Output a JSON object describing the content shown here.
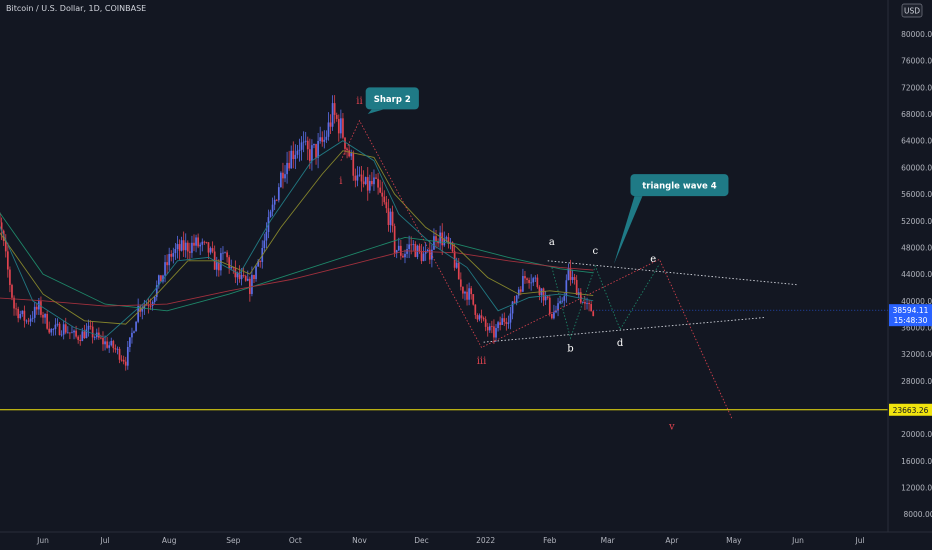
{
  "header": {
    "symbol_label": "Bitcoin / U.S. Dollar, 1D, COINBASE",
    "currency": "USD",
    "top_tick": "84"
  },
  "colors": {
    "background": "#131722",
    "candle_up": "#5b6ee8",
    "candle_down": "#e0434f",
    "support_line": "#f1e40e",
    "price_tag": "#2962ff",
    "callout": "#1f7a86",
    "ma_green": "#1f8c6d",
    "ma_red": "#a8323e",
    "ma_olive": "#8a8a2c",
    "ma_teal": "#227c86"
  },
  "chart_data": {
    "type": "candlestick",
    "y_axis_side": "right",
    "ylim": [
      4500,
      84500
    ],
    "x_ticks": [
      {
        "label": "Jun",
        "day": -180
      },
      {
        "label": "Jul",
        "day": -150
      },
      {
        "label": "Aug",
        "day": -119
      },
      {
        "label": "Sep",
        "day": -88
      },
      {
        "label": "Oct",
        "day": -58
      },
      {
        "label": "Nov",
        "day": -27
      },
      {
        "label": "Dec",
        "day": 3
      },
      {
        "label": "2022",
        "day": 34
      },
      {
        "label": "Feb",
        "day": 65
      },
      {
        "label": "Mar",
        "day": 93
      },
      {
        "label": "Apr",
        "day": 124
      },
      {
        "label": "May",
        "day": 154
      },
      {
        "label": "Jun",
        "day": 185
      },
      {
        "label": "Jul",
        "day": 215
      }
    ],
    "y_ticks": [
      8000,
      12000,
      16000,
      20000,
      24000,
      28000,
      32000,
      36000,
      40000,
      44000,
      48000,
      52000,
      56000,
      60000,
      64000,
      68000,
      72000,
      76000,
      80000
    ],
    "y_tick_labels": [
      "8000.00",
      "12000.00",
      "16000.00",
      "20000.00",
      "24000.00",
      "28000.00",
      "32000.00",
      "36000.00",
      "40000.00",
      "44000.00",
      "48000.00",
      "52000.00",
      "56000.00",
      "60000.00",
      "64000.00",
      "68000.00",
      "72000.00",
      "76000.00",
      "80000.00"
    ],
    "price_path": [
      [
        -206,
        57000
      ],
      [
        -200,
        50000
      ],
      [
        -194,
        39000
      ],
      [
        -188,
        37000
      ],
      [
        -182,
        39000
      ],
      [
        -176,
        35500
      ],
      [
        -170,
        36000
      ],
      [
        -164,
        34500
      ],
      [
        -158,
        35500
      ],
      [
        -152,
        34000
      ],
      [
        -146,
        33000
      ],
      [
        -140,
        31000
      ],
      [
        -134,
        39000
      ],
      [
        -128,
        40000
      ],
      [
        -122,
        44000
      ],
      [
        -118,
        47000
      ],
      [
        -112,
        48000
      ],
      [
        -106,
        48500
      ],
      [
        -100,
        47500
      ],
      [
        -96,
        45000
      ],
      [
        -92,
        47000
      ],
      [
        -88,
        44000
      ],
      [
        -84,
        43000
      ],
      [
        -80,
        42000
      ],
      [
        -76,
        46000
      ],
      [
        -72,
        50000
      ],
      [
        -68,
        55000
      ],
      [
        -64,
        60000
      ],
      [
        -60,
        62000
      ],
      [
        -56,
        63500
      ],
      [
        -52,
        62000
      ],
      [
        -48,
        62500
      ],
      [
        -44,
        64000
      ],
      [
        -40,
        68000
      ],
      [
        -36,
        66000
      ],
      [
        -32,
        62000
      ],
      [
        -28,
        58000
      ],
      [
        -24,
        57000
      ],
      [
        -20,
        57500
      ],
      [
        -16,
        55000
      ],
      [
        -12,
        52000
      ],
      [
        -10,
        48000
      ],
      [
        -6,
        47000
      ],
      [
        -2,
        48500
      ],
      [
        2,
        47000
      ],
      [
        6,
        46500
      ],
      [
        10,
        50000
      ],
      [
        14,
        49000
      ],
      [
        18,
        47000
      ],
      [
        22,
        42000
      ],
      [
        26,
        41000
      ],
      [
        30,
        38000
      ],
      [
        34,
        36000
      ],
      [
        38,
        35000
      ],
      [
        42,
        37000
      ],
      [
        46,
        38000
      ],
      [
        50,
        42000
      ],
      [
        54,
        44000
      ],
      [
        58,
        43000
      ],
      [
        62,
        41000
      ],
      [
        66,
        38000
      ],
      [
        70,
        39000
      ],
      [
        74,
        44000
      ],
      [
        78,
        42000
      ],
      [
        82,
        39000
      ],
      [
        86,
        38600
      ]
    ],
    "moving_averages": [
      {
        "color": "#1f8c6d",
        "points": [
          [
            -205,
            55000
          ],
          [
            -180,
            44000
          ],
          [
            -150,
            39500
          ],
          [
            -120,
            38500
          ],
          [
            -90,
            41000
          ],
          [
            -60,
            44000
          ],
          [
            -30,
            47000
          ],
          [
            -5,
            49500
          ],
          [
            20,
            48500
          ],
          [
            45,
            46500
          ],
          [
            70,
            44800
          ],
          [
            86,
            44200
          ]
        ]
      },
      {
        "color": "#a8323e",
        "points": [
          [
            -205,
            40500
          ],
          [
            -180,
            40000
          ],
          [
            -150,
            39200
          ],
          [
            -120,
            39500
          ],
          [
            -90,
            41500
          ],
          [
            -60,
            43200
          ],
          [
            -30,
            45500
          ],
          [
            -5,
            47500
          ],
          [
            20,
            47200
          ],
          [
            45,
            46000
          ],
          [
            70,
            45000
          ],
          [
            86,
            44600
          ]
        ]
      },
      {
        "color": "#8a8a2c",
        "points": [
          [
            -205,
            52000
          ],
          [
            -180,
            41000
          ],
          [
            -160,
            37000
          ],
          [
            -140,
            36500
          ],
          [
            -125,
            41000
          ],
          [
            -110,
            46000
          ],
          [
            -95,
            46000
          ],
          [
            -80,
            44000
          ],
          [
            -65,
            51000
          ],
          [
            -45,
            59000
          ],
          [
            -35,
            62500
          ],
          [
            -20,
            61500
          ],
          [
            -10,
            56000
          ],
          [
            5,
            51000
          ],
          [
            20,
            48000
          ],
          [
            35,
            43500
          ],
          [
            50,
            41000
          ],
          [
            65,
            41500
          ],
          [
            80,
            41000
          ],
          [
            86,
            40800
          ]
        ]
      },
      {
        "color": "#227c86",
        "points": [
          [
            -205,
            54000
          ],
          [
            -185,
            40000
          ],
          [
            -165,
            36000
          ],
          [
            -150,
            34500
          ],
          [
            -130,
            40000
          ],
          [
            -115,
            46000
          ],
          [
            -100,
            46500
          ],
          [
            -85,
            44000
          ],
          [
            -70,
            52000
          ],
          [
            -50,
            61000
          ],
          [
            -35,
            64000
          ],
          [
            -20,
            61000
          ],
          [
            -8,
            53000
          ],
          [
            8,
            48500
          ],
          [
            25,
            45000
          ],
          [
            40,
            38500
          ],
          [
            55,
            40500
          ],
          [
            70,
            41000
          ],
          [
            86,
            40000
          ]
        ]
      }
    ],
    "wave_labels": [
      {
        "text": "ii",
        "day": -27,
        "price": 69500,
        "color": "#e0434f"
      },
      {
        "text": "i",
        "day": -36,
        "price": 57500,
        "color": "#e0434f"
      },
      {
        "text": "iii",
        "day": 32,
        "price": 30500,
        "color": "#e0434f"
      },
      {
        "text": "a",
        "day": 66,
        "price": 48400,
        "color": "#ffffff"
      },
      {
        "text": "b",
        "day": 75,
        "price": 32400,
        "color": "#ffffff"
      },
      {
        "text": "c",
        "day": 87,
        "price": 47000,
        "color": "#ffffff"
      },
      {
        "text": "d",
        "day": 99,
        "price": 33200,
        "color": "#ffffff"
      },
      {
        "text": "e",
        "day": 115,
        "price": 45800,
        "color": "#ffffff"
      },
      {
        "text": "v",
        "day": 124,
        "price": 20700,
        "color": "#e0434f"
      }
    ],
    "callouts": [
      {
        "text": "Sharp 2",
        "day": -23,
        "price": 68000,
        "box_day": -24,
        "box_price": 72000
      },
      {
        "text": "triangle wave 4",
        "day": 96,
        "price": 45500,
        "box_day": 104,
        "box_price": 59000
      }
    ],
    "current_price": {
      "value": 38594.11,
      "label": "38594.11",
      "countdown": "15:48:30"
    },
    "support_level": {
      "value": 23663.26,
      "label": "23663.26"
    },
    "trendlines": [
      {
        "from": [
          64,
          46000
        ],
        "to": [
          185,
          42400
        ],
        "style": "dotted",
        "color": "#d1d4dc"
      },
      {
        "from": [
          33,
          33800
        ],
        "to": [
          169,
          37500
        ],
        "style": "dotted",
        "color": "#d1d4dc"
      }
    ],
    "wave_paths": [
      {
        "color": "#e0434f",
        "points": [
          [
            -36,
            61000
          ],
          [
            -27,
            67000
          ],
          [
            32,
            33000
          ],
          [
            118,
            46200
          ],
          [
            153,
            22400
          ]
        ]
      },
      {
        "color": "#1f8c6d",
        "points": [
          [
            66,
            45000
          ],
          [
            75,
            34400
          ],
          [
            87,
            45200
          ],
          [
            99,
            35700
          ],
          [
            118,
            45500
          ]
        ]
      }
    ]
  }
}
